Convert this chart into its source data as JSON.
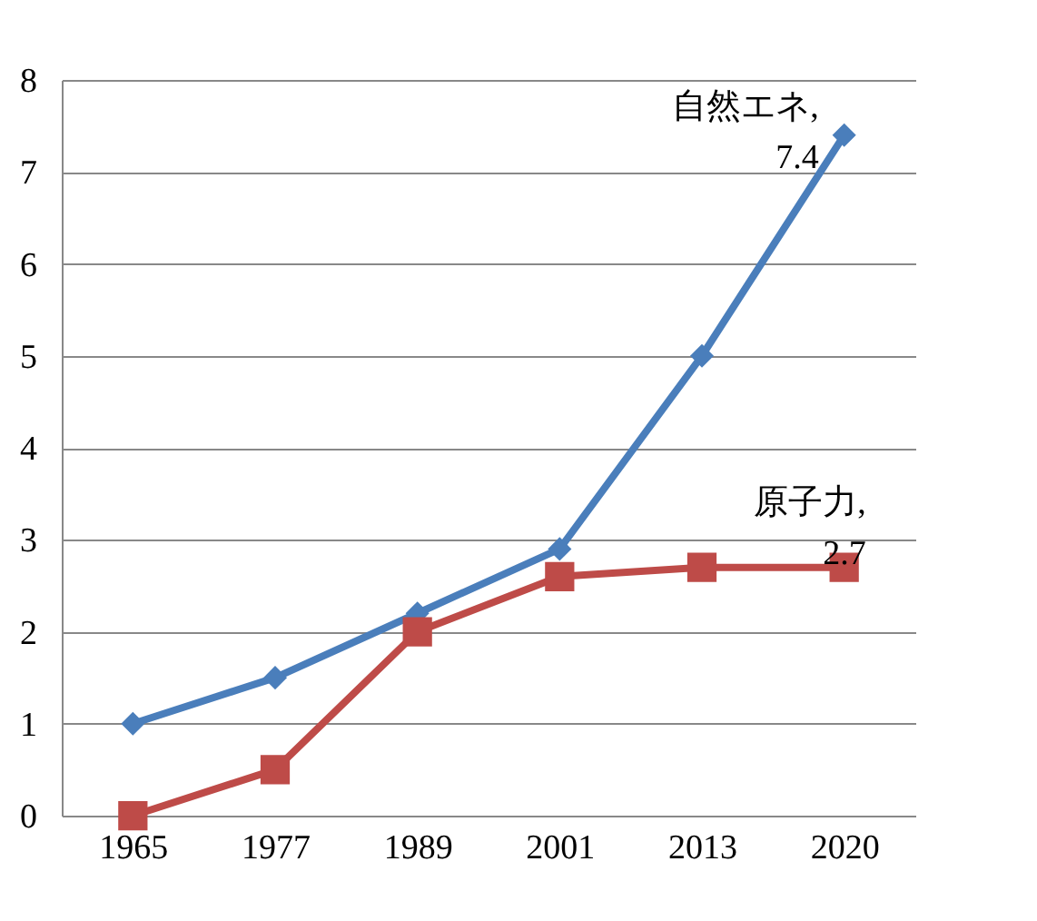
{
  "chart_data": {
    "type": "line",
    "categories": [
      "1965",
      "1977",
      "1989",
      "2001",
      "2013",
      "2020"
    ],
    "series": [
      {
        "color": "#4a7ebb",
        "marker": "diamond",
        "values": [
          1,
          1.5,
          2.2,
          2.9,
          5,
          7.4
        ]
      },
      {
        "color": "#be4b48",
        "marker": "square",
        "values": [
          0,
          0.5,
          2,
          2.6,
          2.7,
          2.7
        ]
      }
    ],
    "annotations": [
      {
        "text": "自然エネ, 7.4",
        "x": "2020",
        "y": 7.4
      },
      {
        "text": "原子力, 2.7",
        "x": "2020",
        "y": 2.7
      }
    ],
    "ylim": [
      0,
      8
    ],
    "yticks": [
      0,
      1,
      2,
      3,
      4,
      5,
      6,
      7,
      8
    ],
    "grid": "y"
  }
}
